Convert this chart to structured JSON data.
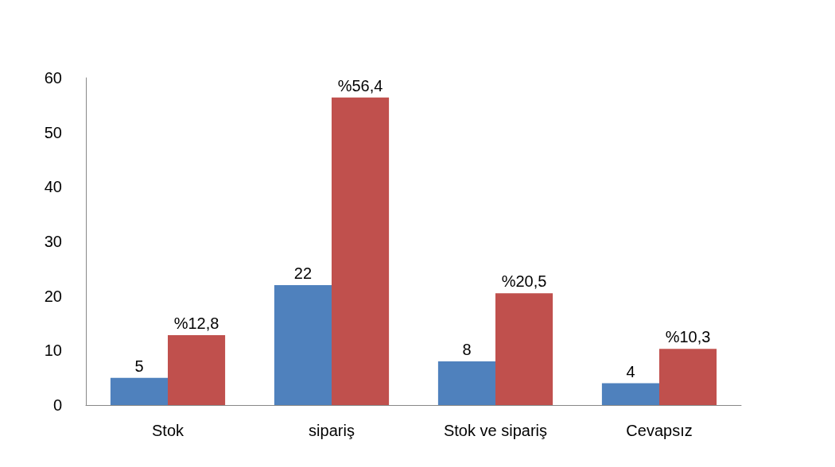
{
  "chart_data": {
    "type": "bar",
    "categories": [
      "Stok",
      "sipariş",
      "Stok ve sipariş",
      "Cevapsız"
    ],
    "series": [
      {
        "color": "#4f81bd",
        "values": [
          5,
          22,
          8,
          4
        ],
        "value_labels": [
          "5",
          "22",
          "8",
          "4"
        ]
      },
      {
        "color": "#c0504d",
        "values": [
          12.8,
          56.4,
          20.5,
          10.3
        ],
        "value_labels": [
          "%12,8",
          "%56,4",
          "%20,5",
          "%10,3"
        ]
      }
    ],
    "ylim": [
      0,
      60
    ],
    "yticks": [
      0,
      10,
      20,
      30,
      40,
      50,
      60
    ],
    "grid": false
  }
}
